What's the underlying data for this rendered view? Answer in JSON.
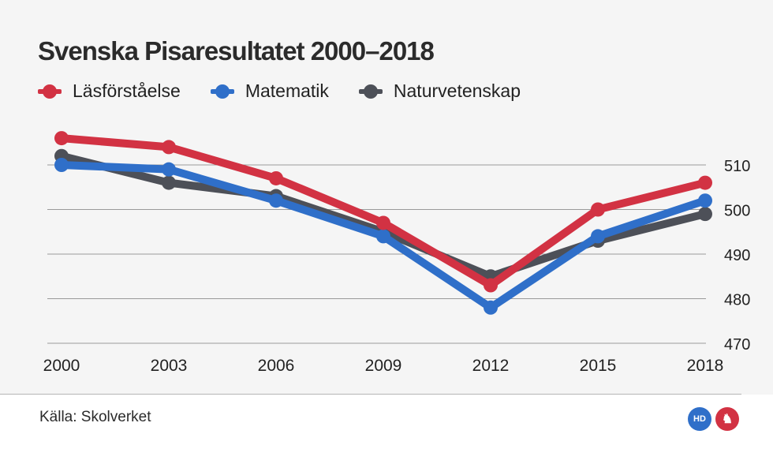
{
  "title": "Svenska Pisaresultatet 2000–2018",
  "source": "Källa: Skolverket",
  "logos": [
    {
      "name": "hd-logo",
      "text": "HD",
      "color": "#2f6fc9"
    },
    {
      "name": "sydsvenskan-griffin-logo",
      "text": "♞",
      "color": "#d23243"
    }
  ],
  "chart_data": {
    "type": "line",
    "title": "Svenska Pisaresultatet 2000–2018",
    "xlabel": "",
    "ylabel": "",
    "x": [
      "2000",
      "2003",
      "2006",
      "2009",
      "2012",
      "2015",
      "2018"
    ],
    "yticks": [
      470,
      480,
      490,
      500,
      510
    ],
    "ylim": [
      470,
      518
    ],
    "grid": true,
    "legend_position": "top-left",
    "y_axis_position": "right",
    "series": [
      {
        "name": "Läsförståelse",
        "color": "#d23243",
        "values": [
          516,
          514,
          507,
          497,
          483,
          500,
          506
        ]
      },
      {
        "name": "Matematik",
        "color": "#2f6fc9",
        "values": [
          510,
          509,
          502,
          494,
          478,
          494,
          502
        ]
      },
      {
        "name": "Naturvetenskap",
        "color": "#4d5058",
        "values": [
          512,
          506,
          503,
          495,
          485,
          493,
          499
        ]
      }
    ]
  }
}
